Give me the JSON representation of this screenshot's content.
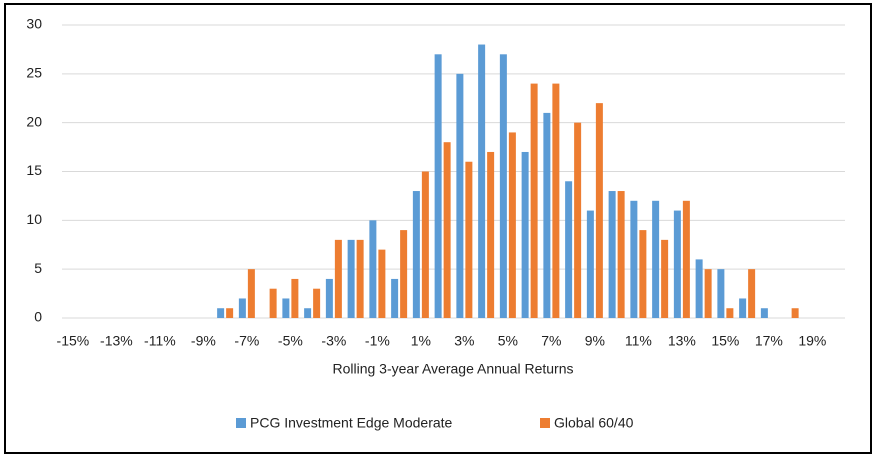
{
  "chart_data": {
    "type": "bar",
    "x_label": "Rolling 3-year Average Annual Returns",
    "categories": [
      "-15%",
      null,
      "-13%",
      null,
      "-11%",
      null,
      "-9%",
      null,
      "-7%",
      null,
      "-5%",
      null,
      "-3%",
      null,
      "-1%",
      null,
      "1%",
      null,
      "3%",
      null,
      "5%",
      null,
      "7%",
      null,
      "9%",
      null,
      "11%",
      null,
      "13%",
      null,
      "15%",
      null,
      "17%",
      null,
      "19%",
      null
    ],
    "series": [
      {
        "name": "PCG Investment Edge Moderate",
        "color": "#5b9bd5",
        "values": [
          0,
          0,
          0,
          0,
          0,
          0,
          0,
          1,
          2,
          0,
          2,
          1,
          4,
          8,
          10,
          4,
          13,
          27,
          25,
          28,
          27,
          17,
          21,
          14,
          11,
          13,
          12,
          12,
          11,
          6,
          5,
          2,
          1,
          0,
          0,
          0
        ]
      },
      {
        "name": "Global 60/40",
        "color": "#ed7d31",
        "values": [
          0,
          0,
          0,
          0,
          0,
          0,
          0,
          1,
          5,
          3,
          4,
          3,
          8,
          8,
          7,
          9,
          15,
          18,
          16,
          17,
          19,
          24,
          24,
          20,
          22,
          13,
          9,
          8,
          12,
          5,
          1,
          5,
          0,
          1,
          0,
          0
        ]
      }
    ],
    "ylim": [
      0,
      30
    ],
    "yticks": [
      0,
      5,
      10,
      15,
      20,
      25,
      30
    ],
    "grid": true,
    "legend": "bottom"
  }
}
